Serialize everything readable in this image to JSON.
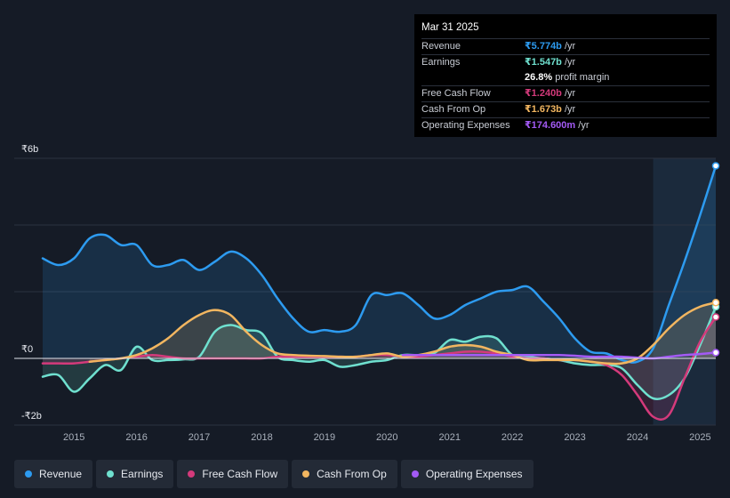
{
  "tooltip": {
    "date": "Mar 31 2025",
    "rows": [
      {
        "label": "Revenue",
        "value": "₹5.774b",
        "unit": " /yr",
        "color": "#2d9bf0"
      },
      {
        "label": "Earnings",
        "value": "₹1.547b",
        "unit": " /yr",
        "color": "#6fe0cf"
      },
      {
        "label": "",
        "value": "26.8%",
        "unit": " profit margin",
        "color": "#ffffff"
      },
      {
        "label": "Free Cash Flow",
        "value": "₹1.240b",
        "unit": " /yr",
        "color": "#d43a7b"
      },
      {
        "label": "Cash From Op",
        "value": "₹1.673b",
        "unit": " /yr",
        "color": "#f2b660"
      },
      {
        "label": "Operating Expenses",
        "value": "₹174.600m",
        "unit": " /yr",
        "color": "#a35af5"
      }
    ]
  },
  "legend": {
    "items": [
      {
        "label": "Revenue",
        "color": "#2d9bf0"
      },
      {
        "label": "Earnings",
        "color": "#6fe0cf"
      },
      {
        "label": "Free Cash Flow",
        "color": "#d43a7b"
      },
      {
        "label": "Cash From Op",
        "color": "#f2b660"
      },
      {
        "label": "Operating Expenses",
        "color": "#a35af5"
      }
    ]
  },
  "chart_data": {
    "type": "area",
    "title": "",
    "xlabel": "",
    "ylabel": "",
    "x_range": [
      2014.5,
      2025.25
    ],
    "ylim": [
      -2,
      6
    ],
    "y_ticks": [
      {
        "value": 6,
        "label": "₹6b"
      },
      {
        "value": 0,
        "label": "₹0"
      },
      {
        "value": -2,
        "label": "-₹2b"
      }
    ],
    "y_gridlines": [
      6,
      4,
      2,
      0,
      -2
    ],
    "x_ticks": [
      "2015",
      "2016",
      "2017",
      "2018",
      "2019",
      "2020",
      "2021",
      "2022",
      "2023",
      "2024",
      "2025"
    ],
    "x_tick_values": [
      2015,
      2016,
      2017,
      2018,
      2019,
      2020,
      2021,
      2022,
      2023,
      2024,
      2025
    ],
    "highlight_from": 2024.25,
    "series": [
      {
        "name": "Revenue",
        "color": "#2d9bf0",
        "fill": true,
        "points": [
          [
            2014.5,
            3.0
          ],
          [
            2014.75,
            2.8
          ],
          [
            2015.0,
            3.0
          ],
          [
            2015.25,
            3.6
          ],
          [
            2015.5,
            3.7
          ],
          [
            2015.75,
            3.4
          ],
          [
            2016.0,
            3.4
          ],
          [
            2016.25,
            2.8
          ],
          [
            2016.5,
            2.8
          ],
          [
            2016.75,
            2.95
          ],
          [
            2017.0,
            2.65
          ],
          [
            2017.25,
            2.9
          ],
          [
            2017.5,
            3.2
          ],
          [
            2017.75,
            3.0
          ],
          [
            2018.0,
            2.5
          ],
          [
            2018.25,
            1.8
          ],
          [
            2018.5,
            1.2
          ],
          [
            2018.75,
            0.8
          ],
          [
            2019.0,
            0.85
          ],
          [
            2019.25,
            0.8
          ],
          [
            2019.5,
            1.0
          ],
          [
            2019.75,
            1.9
          ],
          [
            2020.0,
            1.9
          ],
          [
            2020.25,
            1.95
          ],
          [
            2020.5,
            1.6
          ],
          [
            2020.75,
            1.2
          ],
          [
            2021.0,
            1.3
          ],
          [
            2021.25,
            1.6
          ],
          [
            2021.5,
            1.8
          ],
          [
            2021.75,
            2.0
          ],
          [
            2022.0,
            2.05
          ],
          [
            2022.25,
            2.15
          ],
          [
            2022.5,
            1.7
          ],
          [
            2022.75,
            1.2
          ],
          [
            2023.0,
            0.6
          ],
          [
            2023.25,
            0.2
          ],
          [
            2023.5,
            0.15
          ],
          [
            2023.75,
            -0.05
          ],
          [
            2024.0,
            -0.1
          ],
          [
            2024.25,
            0.3
          ],
          [
            2024.5,
            1.6
          ],
          [
            2024.75,
            2.9
          ],
          [
            2025.0,
            4.3
          ],
          [
            2025.25,
            5.774
          ]
        ]
      },
      {
        "name": "Earnings",
        "color": "#6fe0cf",
        "fill": true,
        "points": [
          [
            2014.5,
            -0.55
          ],
          [
            2014.75,
            -0.5
          ],
          [
            2015.0,
            -1.0
          ],
          [
            2015.25,
            -0.6
          ],
          [
            2015.5,
            -0.2
          ],
          [
            2015.75,
            -0.35
          ],
          [
            2016.0,
            0.35
          ],
          [
            2016.25,
            -0.05
          ],
          [
            2016.5,
            -0.05
          ],
          [
            2016.75,
            -0.03
          ],
          [
            2017.0,
            0.05
          ],
          [
            2017.25,
            0.8
          ],
          [
            2017.5,
            1.0
          ],
          [
            2017.75,
            0.85
          ],
          [
            2018.0,
            0.75
          ],
          [
            2018.25,
            0.05
          ],
          [
            2018.5,
            -0.05
          ],
          [
            2018.75,
            -0.1
          ],
          [
            2019.0,
            -0.05
          ],
          [
            2019.25,
            -0.25
          ],
          [
            2019.5,
            -0.2
          ],
          [
            2019.75,
            -0.1
          ],
          [
            2020.0,
            -0.05
          ],
          [
            2020.25,
            0.1
          ],
          [
            2020.5,
            0.1
          ],
          [
            2020.75,
            0.15
          ],
          [
            2021.0,
            0.55
          ],
          [
            2021.25,
            0.5
          ],
          [
            2021.5,
            0.65
          ],
          [
            2021.75,
            0.6
          ],
          [
            2022.0,
            0.1
          ],
          [
            2022.25,
            0.05
          ],
          [
            2022.5,
            0.0
          ],
          [
            2022.75,
            -0.05
          ],
          [
            2023.0,
            -0.15
          ],
          [
            2023.25,
            -0.2
          ],
          [
            2023.5,
            -0.2
          ],
          [
            2023.75,
            -0.3
          ],
          [
            2024.0,
            -0.8
          ],
          [
            2024.25,
            -1.2
          ],
          [
            2024.5,
            -1.1
          ],
          [
            2024.75,
            -0.6
          ],
          [
            2025.0,
            0.4
          ],
          [
            2025.25,
            1.547
          ]
        ]
      },
      {
        "name": "Free Cash Flow",
        "color": "#d43a7b",
        "fill": true,
        "points": [
          [
            2014.5,
            -0.15
          ],
          [
            2014.75,
            -0.15
          ],
          [
            2015.0,
            -0.15
          ],
          [
            2015.25,
            -0.1
          ],
          [
            2015.5,
            -0.05
          ],
          [
            2015.75,
            0.0
          ],
          [
            2016.0,
            0.05
          ],
          [
            2016.25,
            0.1
          ],
          [
            2016.5,
            0.05
          ],
          [
            2016.75,
            0.0
          ],
          [
            2017.0,
            0.0
          ],
          [
            2017.25,
            0.0
          ],
          [
            2017.5,
            0.0
          ],
          [
            2017.75,
            0.0
          ],
          [
            2018.0,
            0.0
          ],
          [
            2018.25,
            0.05
          ],
          [
            2018.5,
            0.05
          ],
          [
            2018.75,
            0.05
          ],
          [
            2019.0,
            0.05
          ],
          [
            2019.25,
            0.05
          ],
          [
            2019.5,
            0.05
          ],
          [
            2019.75,
            0.1
          ],
          [
            2020.0,
            0.1
          ],
          [
            2020.25,
            0.05
          ],
          [
            2020.5,
            0.05
          ],
          [
            2020.75,
            0.1
          ],
          [
            2021.0,
            0.15
          ],
          [
            2021.25,
            0.2
          ],
          [
            2021.5,
            0.2
          ],
          [
            2021.75,
            0.15
          ],
          [
            2022.0,
            0.05
          ],
          [
            2022.25,
            0.0
          ],
          [
            2022.5,
            0.0
          ],
          [
            2022.75,
            -0.05
          ],
          [
            2023.0,
            -0.05
          ],
          [
            2023.25,
            -0.1
          ],
          [
            2023.5,
            -0.2
          ],
          [
            2023.75,
            -0.5
          ],
          [
            2024.0,
            -1.1
          ],
          [
            2024.25,
            -1.75
          ],
          [
            2024.5,
            -1.7
          ],
          [
            2024.75,
            -0.6
          ],
          [
            2025.0,
            0.5
          ],
          [
            2025.25,
            1.24
          ]
        ]
      },
      {
        "name": "Cash From Op",
        "color": "#f2b660",
        "fill": true,
        "points": [
          [
            2015.25,
            -0.1
          ],
          [
            2015.5,
            -0.05
          ],
          [
            2015.75,
            0.0
          ],
          [
            2016.0,
            0.1
          ],
          [
            2016.25,
            0.3
          ],
          [
            2016.5,
            0.6
          ],
          [
            2016.75,
            1.0
          ],
          [
            2017.0,
            1.3
          ],
          [
            2017.25,
            1.45
          ],
          [
            2017.5,
            1.3
          ],
          [
            2017.75,
            0.8
          ],
          [
            2018.0,
            0.4
          ],
          [
            2018.25,
            0.15
          ],
          [
            2018.5,
            0.1
          ],
          [
            2018.75,
            0.08
          ],
          [
            2019.0,
            0.07
          ],
          [
            2019.25,
            0.05
          ],
          [
            2019.5,
            0.05
          ],
          [
            2019.75,
            0.1
          ],
          [
            2020.0,
            0.15
          ],
          [
            2020.25,
            0.05
          ],
          [
            2020.5,
            0.1
          ],
          [
            2020.75,
            0.2
          ],
          [
            2021.0,
            0.35
          ],
          [
            2021.25,
            0.4
          ],
          [
            2021.5,
            0.35
          ],
          [
            2021.75,
            0.2
          ],
          [
            2022.0,
            0.1
          ],
          [
            2022.25,
            -0.05
          ],
          [
            2022.5,
            -0.05
          ],
          [
            2022.75,
            -0.05
          ],
          [
            2023.0,
            -0.05
          ],
          [
            2023.25,
            -0.1
          ],
          [
            2023.5,
            -0.15
          ],
          [
            2023.75,
            -0.15
          ],
          [
            2024.0,
            0.0
          ],
          [
            2024.25,
            0.4
          ],
          [
            2024.5,
            0.9
          ],
          [
            2024.75,
            1.3
          ],
          [
            2025.0,
            1.55
          ],
          [
            2025.25,
            1.673
          ]
        ]
      },
      {
        "name": "Operating Expenses",
        "color": "#a35af5",
        "fill": false,
        "points": [
          [
            2020.25,
            0.1
          ],
          [
            2020.5,
            0.1
          ],
          [
            2020.75,
            0.1
          ],
          [
            2021.0,
            0.1
          ],
          [
            2021.25,
            0.1
          ],
          [
            2021.5,
            0.1
          ],
          [
            2021.75,
            0.1
          ],
          [
            2022.0,
            0.1
          ],
          [
            2022.25,
            0.1
          ],
          [
            2022.5,
            0.1
          ],
          [
            2022.75,
            0.1
          ],
          [
            2023.0,
            0.08
          ],
          [
            2023.25,
            0.05
          ],
          [
            2023.5,
            0.05
          ],
          [
            2023.75,
            0.05
          ],
          [
            2024.0,
            0.02
          ],
          [
            2024.25,
            0.0
          ],
          [
            2024.5,
            0.05
          ],
          [
            2024.75,
            0.1
          ],
          [
            2025.0,
            0.13
          ],
          [
            2025.25,
            0.1746
          ]
        ]
      }
    ]
  }
}
